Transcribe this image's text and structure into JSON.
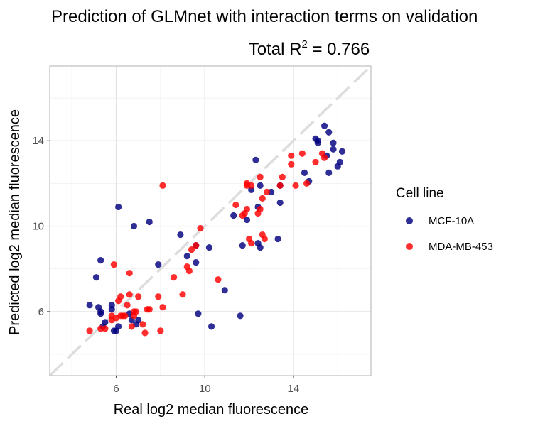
{
  "chart_data": {
    "type": "scatter",
    "title": "Prediction of GLMnet with interaction terms on validation",
    "subtitle": {
      "prefix": "Total R",
      "superscript": "2",
      "suffix": " = 0.766"
    },
    "xlabel": "Real log2 median fluorescence",
    "ylabel": "Predicted log2 median fluorescence",
    "xlim": [
      3.0,
      17.5
    ],
    "ylim": [
      3.0,
      17.5
    ],
    "x_ticks": [
      6,
      10,
      14
    ],
    "y_ticks": [
      6,
      10,
      14
    ],
    "x_tick_labels": [
      "6",
      "10",
      "14"
    ],
    "y_tick_labels": [
      "6",
      "10",
      "14"
    ],
    "grid": true,
    "reference_line": {
      "type": "identity",
      "style": "dashed",
      "color": "#dddddd"
    },
    "legend": {
      "title": "Cell line",
      "position": "right"
    },
    "series": [
      {
        "name": "MCF-10A",
        "color": "#00007f",
        "points": [
          [
            4.8,
            6.3
          ],
          [
            5.1,
            7.6
          ],
          [
            5.2,
            6.2
          ],
          [
            5.3,
            6.0
          ],
          [
            5.3,
            5.9
          ],
          [
            5.3,
            8.4
          ],
          [
            5.4,
            5.3
          ],
          [
            5.5,
            5.5
          ],
          [
            5.8,
            6.3
          ],
          [
            5.8,
            6.1
          ],
          [
            5.9,
            5.1
          ],
          [
            6.0,
            5.1
          ],
          [
            6.1,
            5.3
          ],
          [
            6.1,
            10.9
          ],
          [
            6.6,
            5.9
          ],
          [
            6.7,
            5.6
          ],
          [
            6.8,
            10.0
          ],
          [
            6.9,
            5.4
          ],
          [
            7.0,
            5.6
          ],
          [
            7.5,
            10.2
          ],
          [
            7.9,
            8.2
          ],
          [
            8.9,
            9.6
          ],
          [
            9.2,
            8.6
          ],
          [
            9.6,
            8.3
          ],
          [
            9.6,
            9.1
          ],
          [
            9.7,
            5.9
          ],
          [
            10.2,
            9.0
          ],
          [
            10.3,
            5.3
          ],
          [
            10.9,
            7.0
          ],
          [
            11.3,
            10.5
          ],
          [
            11.6,
            5.8
          ],
          [
            11.7,
            9.1
          ],
          [
            11.9,
            10.3
          ],
          [
            12.1,
            11.7
          ],
          [
            12.3,
            13.1
          ],
          [
            12.4,
            9.2
          ],
          [
            12.4,
            10.9
          ],
          [
            12.5,
            11.9
          ],
          [
            12.5,
            9.0
          ],
          [
            13.0,
            11.6
          ],
          [
            13.3,
            9.4
          ],
          [
            13.4,
            11.1
          ],
          [
            13.4,
            11.9
          ],
          [
            14.5,
            12.5
          ],
          [
            14.7,
            12.1
          ],
          [
            15.0,
            14.1
          ],
          [
            15.1,
            13.9
          ],
          [
            15.1,
            14.0
          ],
          [
            15.4,
            14.7
          ],
          [
            15.5,
            13.3
          ],
          [
            15.6,
            12.5
          ],
          [
            15.6,
            14.4
          ],
          [
            15.8,
            13.6
          ],
          [
            15.8,
            13.9
          ],
          [
            16.0,
            12.8
          ],
          [
            16.1,
            13.0
          ],
          [
            16.2,
            13.5
          ]
        ]
      },
      {
        "name": "MDA-MB-453",
        "color": "#ff0000",
        "points": [
          [
            4.8,
            5.1
          ],
          [
            5.3,
            5.2
          ],
          [
            5.5,
            5.2
          ],
          [
            5.8,
            5.8
          ],
          [
            5.8,
            5.6
          ],
          [
            5.9,
            8.2
          ],
          [
            6.0,
            5.7
          ],
          [
            6.1,
            6.5
          ],
          [
            6.2,
            6.7
          ],
          [
            6.2,
            5.8
          ],
          [
            6.3,
            5.8
          ],
          [
            6.4,
            5.8
          ],
          [
            6.5,
            6.3
          ],
          [
            6.6,
            7.8
          ],
          [
            6.6,
            6.8
          ],
          [
            6.7,
            5.3
          ],
          [
            6.8,
            6.0
          ],
          [
            6.8,
            5.8
          ],
          [
            6.9,
            6.0
          ],
          [
            7.0,
            6.7
          ],
          [
            7.2,
            5.4
          ],
          [
            7.3,
            5.0
          ],
          [
            7.4,
            6.1
          ],
          [
            7.5,
            6.1
          ],
          [
            7.9,
            6.7
          ],
          [
            8.0,
            5.1
          ],
          [
            8.1,
            11.9
          ],
          [
            8.1,
            6.2
          ],
          [
            8.6,
            7.6
          ],
          [
            9.0,
            6.8
          ],
          [
            9.2,
            8.1
          ],
          [
            9.3,
            7.9
          ],
          [
            9.4,
            8.9
          ],
          [
            9.6,
            9.1
          ],
          [
            9.8,
            9.9
          ],
          [
            10.6,
            7.5
          ],
          [
            11.4,
            11.0
          ],
          [
            11.7,
            10.5
          ],
          [
            11.8,
            10.6
          ],
          [
            11.9,
            11.9
          ],
          [
            11.9,
            10.8
          ],
          [
            11.9,
            12.0
          ],
          [
            12.0,
            9.4
          ],
          [
            12.1,
            11.9
          ],
          [
            12.1,
            9.2
          ],
          [
            12.4,
            10.6
          ],
          [
            12.5,
            12.3
          ],
          [
            12.5,
            10.8
          ],
          [
            12.6,
            9.6
          ],
          [
            12.6,
            11.3
          ],
          [
            12.7,
            9.4
          ],
          [
            12.8,
            11.6
          ],
          [
            13.4,
            11.9
          ],
          [
            13.5,
            12.3
          ],
          [
            13.9,
            12.9
          ],
          [
            13.9,
            13.3
          ],
          [
            14.1,
            11.9
          ],
          [
            14.4,
            13.4
          ],
          [
            14.6,
            12.0
          ],
          [
            15.0,
            13.0
          ],
          [
            15.3,
            13.4
          ],
          [
            15.4,
            13.2
          ]
        ]
      }
    ]
  }
}
